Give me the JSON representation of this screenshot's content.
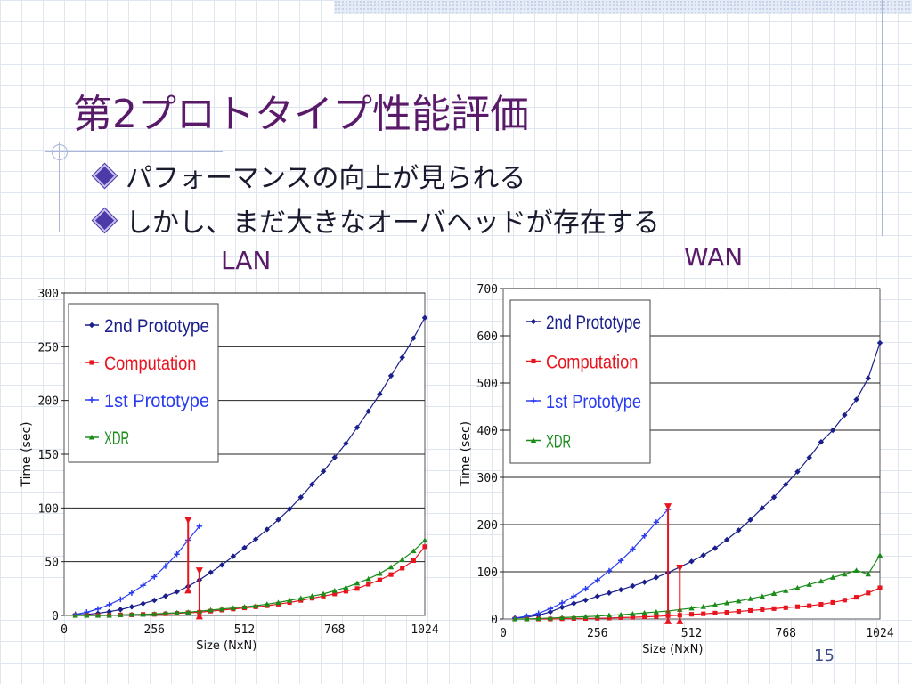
{
  "slide": {
    "title": "第2プロトタイプ性能評価",
    "bullets": [
      "パフォーマンスの向上が見られる",
      "しかし、まだ大きなオーバヘッドが存在する"
    ],
    "page_number": "15",
    "colors": {
      "title": "#5a1a6a",
      "accent": "#4b3aa8"
    }
  },
  "charts": {
    "lan_label": "LAN",
    "wan_label": "WAN"
  },
  "chart_data": [
    {
      "type": "line",
      "title": "",
      "xlabel": "Size (NxN)",
      "ylabel": "Time (sec)",
      "xlim": [
        0,
        1024
      ],
      "ylim": [
        0,
        300
      ],
      "xticks": [
        0,
        256,
        512,
        768,
        1024
      ],
      "yticks": [
        0,
        50,
        100,
        150,
        200,
        250,
        300
      ],
      "legend": "top-left",
      "grid": "horizontal",
      "series": [
        {
          "name": "2nd Prototype",
          "color": "#1a1f8c",
          "marker": "diamond",
          "x": [
            32,
            64,
            96,
            128,
            160,
            192,
            224,
            256,
            288,
            320,
            352,
            384,
            416,
            448,
            480,
            512,
            544,
            576,
            608,
            640,
            672,
            704,
            736,
            768,
            800,
            832,
            864,
            896,
            928,
            960,
            992,
            1024
          ],
          "y": [
            0.5,
            1,
            2,
            3.5,
            5.5,
            8,
            11,
            14,
            18,
            22,
            27,
            33,
            40,
            47,
            55,
            63,
            71,
            80,
            89,
            99,
            110,
            122,
            134,
            147,
            160,
            175,
            190,
            206,
            223,
            240,
            258,
            277
          ]
        },
        {
          "name": "Computation",
          "color": "#e8141e",
          "marker": "square",
          "x": [
            32,
            64,
            96,
            128,
            160,
            192,
            224,
            256,
            288,
            320,
            352,
            384,
            416,
            448,
            480,
            512,
            544,
            576,
            608,
            640,
            672,
            704,
            736,
            768,
            800,
            832,
            864,
            896,
            928,
            960,
            992,
            1024
          ],
          "y": [
            0,
            0,
            0,
            0,
            0.5,
            0.5,
            1,
            1,
            1.5,
            2,
            2.5,
            3,
            4,
            5,
            6,
            7,
            8,
            9,
            10.5,
            12,
            14,
            16,
            18,
            20,
            22.5,
            25,
            29,
            33,
            38,
            44,
            51,
            64
          ]
        },
        {
          "name": "1st Prototype",
          "color": "#2a3cf0",
          "marker": "cross",
          "x": [
            32,
            64,
            96,
            128,
            160,
            192,
            224,
            256,
            288,
            320,
            352,
            384
          ],
          "y": [
            1,
            3,
            6,
            10,
            15,
            21,
            28,
            36,
            46,
            57,
            70,
            83
          ]
        },
        {
          "name": "XDR",
          "color": "#1a8c1a",
          "marker": "triangle",
          "x": [
            32,
            64,
            96,
            128,
            160,
            192,
            224,
            256,
            288,
            320,
            352,
            384,
            416,
            448,
            480,
            512,
            544,
            576,
            608,
            640,
            672,
            704,
            736,
            768,
            800,
            832,
            864,
            896,
            928,
            960,
            992,
            1024
          ],
          "y": [
            0,
            0,
            0,
            0,
            0.5,
            1,
            1,
            1.5,
            2,
            2.5,
            3,
            4,
            5,
            6,
            7,
            8,
            9,
            10.5,
            12,
            14,
            16,
            18,
            20,
            23,
            26,
            30,
            34,
            39,
            45,
            52,
            60,
            70
          ]
        }
      ]
    },
    {
      "type": "line",
      "title": "",
      "xlabel": "Size (NxN)",
      "ylabel": "Time (sec)",
      "xlim": [
        0,
        1024
      ],
      "ylim": [
        0,
        700
      ],
      "xticks": [
        0,
        256,
        512,
        768,
        1024
      ],
      "yticks": [
        0,
        100,
        200,
        300,
        400,
        500,
        600,
        700
      ],
      "legend": "top-left",
      "grid": "horizontal",
      "series": [
        {
          "name": "2nd Prototype",
          "color": "#1a1f8c",
          "marker": "diamond",
          "x": [
            32,
            64,
            96,
            128,
            160,
            192,
            224,
            256,
            288,
            320,
            352,
            384,
            416,
            448,
            480,
            512,
            544,
            576,
            608,
            640,
            672,
            704,
            736,
            768,
            800,
            832,
            864,
            896,
            928,
            960,
            992,
            1024
          ],
          "y": [
            2,
            4,
            8,
            15,
            25,
            33,
            40,
            48,
            55,
            62,
            70,
            78,
            88,
            98,
            110,
            122,
            135,
            150,
            168,
            188,
            210,
            235,
            258,
            285,
            312,
            342,
            375,
            400,
            432,
            465,
            510,
            585
          ]
        },
        {
          "name": "Computation",
          "color": "#e8141e",
          "marker": "square",
          "x": [
            32,
            64,
            96,
            128,
            160,
            192,
            224,
            256,
            288,
            320,
            352,
            384,
            416,
            448,
            480,
            512,
            544,
            576,
            608,
            640,
            672,
            704,
            736,
            768,
            800,
            832,
            864,
            896,
            928,
            960,
            992,
            1024
          ],
          "y": [
            0,
            0,
            0,
            0,
            0.5,
            1,
            1,
            1.5,
            2,
            3,
            3.5,
            4.5,
            5.5,
            7,
            8,
            10,
            11,
            12.5,
            14,
            16,
            18,
            20,
            22,
            24,
            26,
            28,
            31,
            35,
            40,
            46,
            55,
            66
          ]
        },
        {
          "name": "1st Prototype",
          "color": "#2a3cf0",
          "marker": "cross",
          "x": [
            32,
            64,
            96,
            128,
            160,
            192,
            224,
            256,
            288,
            320,
            352,
            384,
            416,
            448
          ],
          "y": [
            2,
            6,
            12,
            22,
            34,
            48,
            64,
            82,
            102,
            124,
            148,
            176,
            205,
            232
          ]
        },
        {
          "name": "XDR",
          "color": "#1a8c1a",
          "marker": "triangle",
          "x": [
            32,
            64,
            96,
            128,
            160,
            192,
            224,
            256,
            288,
            320,
            352,
            384,
            416,
            448,
            480,
            512,
            544,
            576,
            608,
            640,
            672,
            704,
            736,
            768,
            800,
            832,
            864,
            896,
            928,
            960,
            992,
            1024
          ],
          "y": [
            0,
            0,
            1,
            2,
            3,
            4,
            5,
            6,
            8,
            9,
            11,
            13,
            15,
            17,
            20,
            23,
            26,
            30,
            34,
            38,
            43,
            48,
            54,
            60,
            66,
            73,
            80,
            88,
            95,
            103,
            95,
            135
          ]
        }
      ]
    }
  ]
}
